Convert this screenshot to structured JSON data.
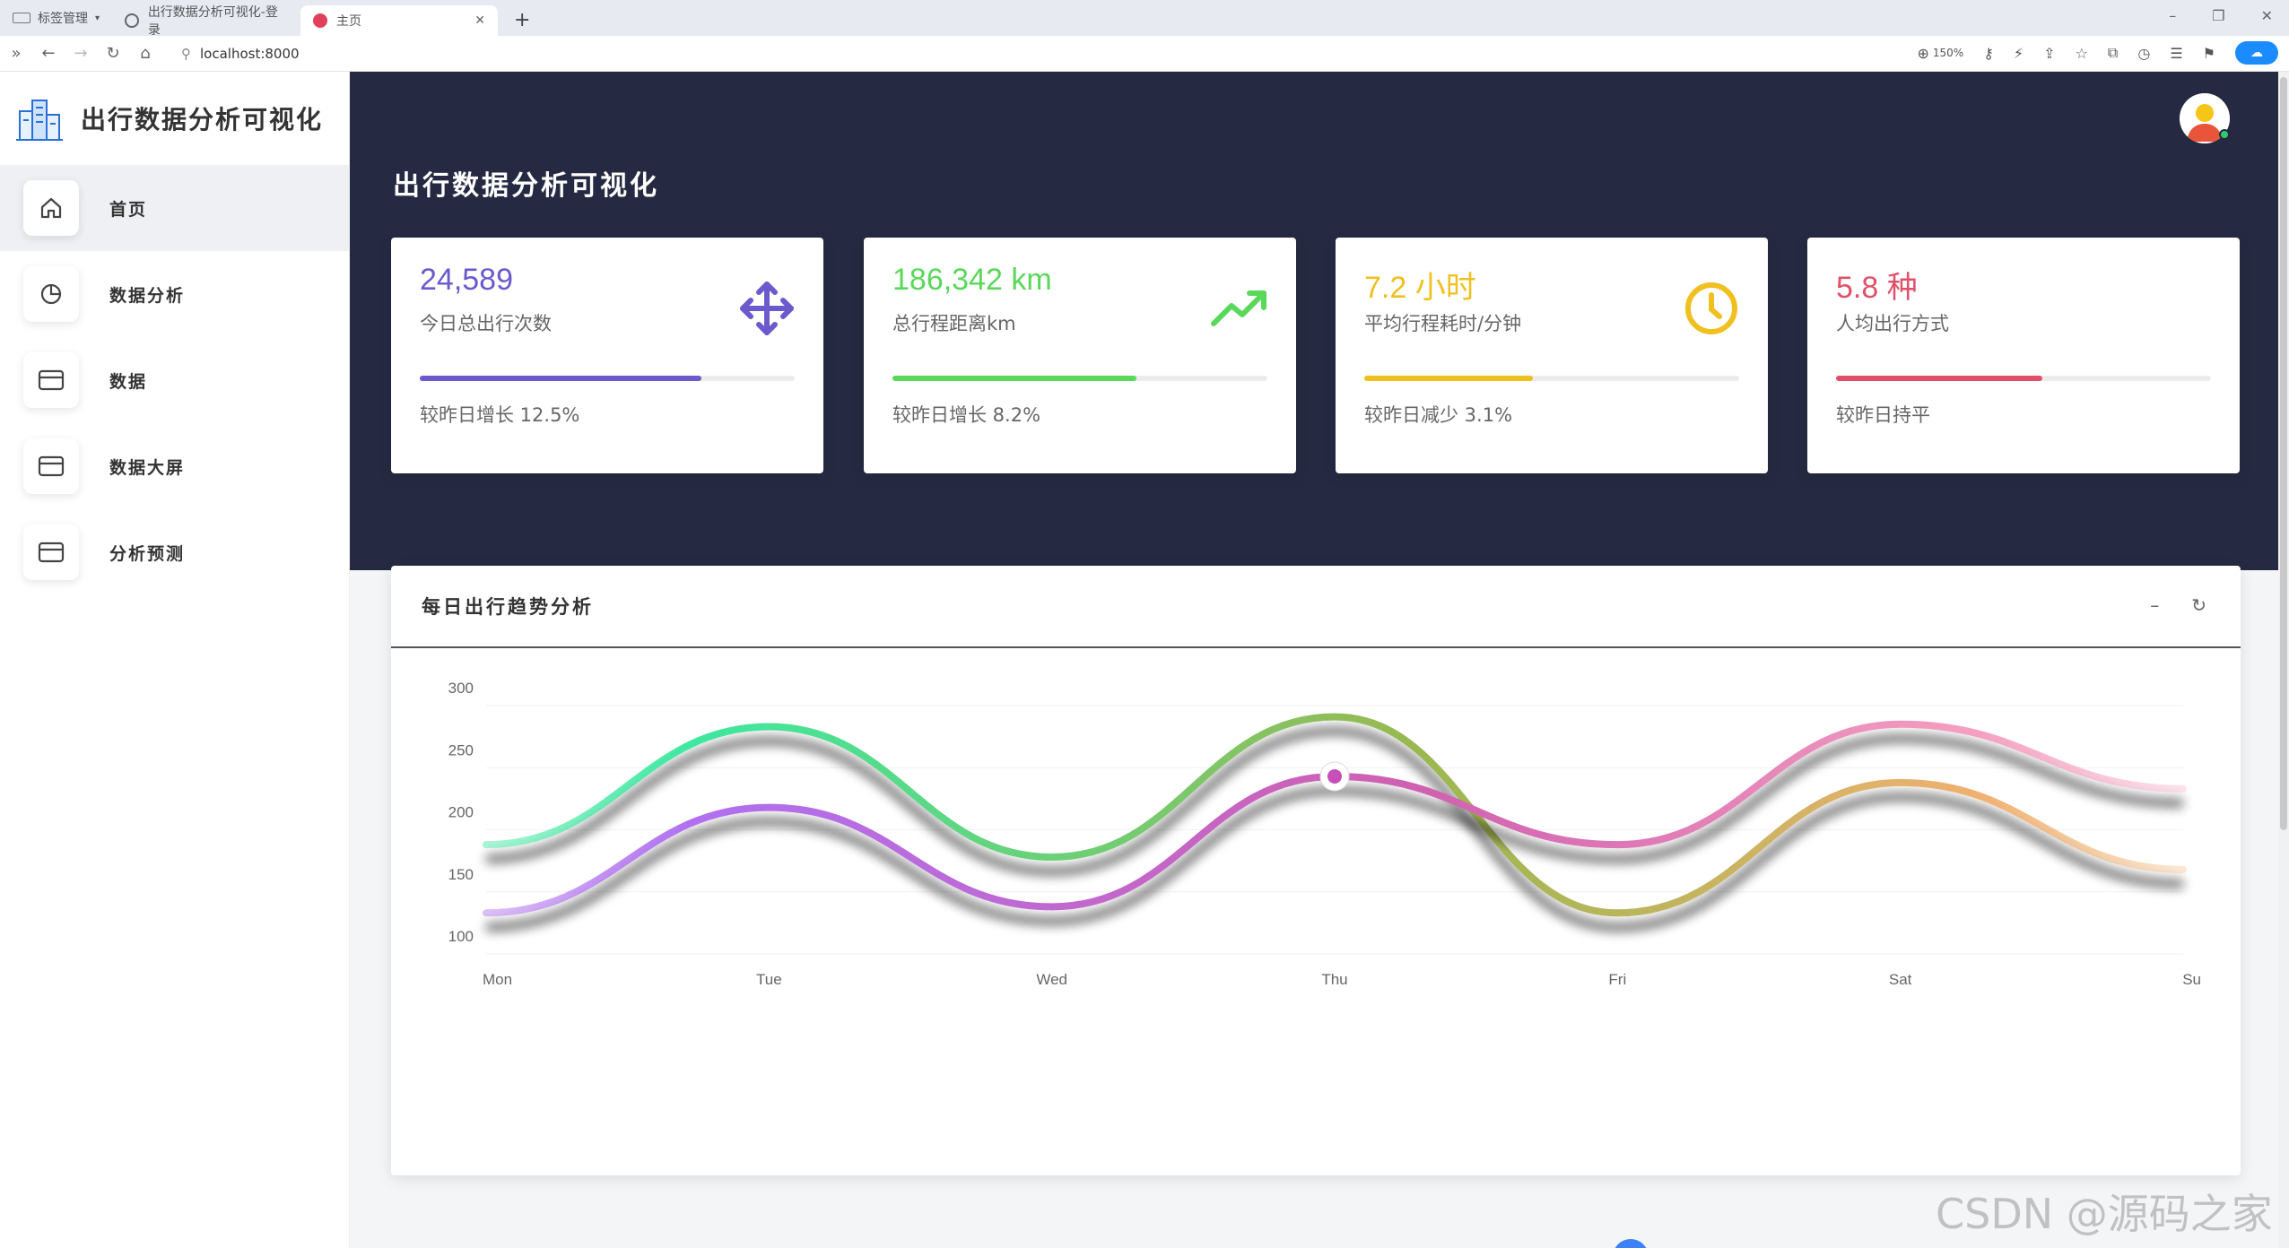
{
  "browser": {
    "tab_group_label": "标签管理",
    "tabs": [
      {
        "title": "出行数据分析可视化-登录"
      },
      {
        "title": "主页"
      }
    ],
    "url": "localhost:8000",
    "zoom": "150%"
  },
  "sidebar": {
    "brand": "出行数据分析可视化",
    "items": [
      {
        "label": "首页",
        "icon": "home-icon"
      },
      {
        "label": "数据分析",
        "icon": "pie-chart-icon"
      },
      {
        "label": "数据",
        "icon": "card-icon"
      },
      {
        "label": "数据大屏",
        "icon": "card-icon"
      },
      {
        "label": "分析预测",
        "icon": "card-icon"
      }
    ]
  },
  "header": {
    "page_title": "出行数据分析可视化"
  },
  "stats": [
    {
      "value": "24,589",
      "label": "今日总出行次数",
      "note": "较昨日增长 12.5%",
      "color": "#6a5acd",
      "progress": 0.75,
      "icon": "move-arrows-icon"
    },
    {
      "value": "186,342 km",
      "label": "总行程距离km",
      "note": "较昨日增长 8.2%",
      "color": "#5ad85a",
      "progress": 0.65,
      "icon": "trending-up-icon"
    },
    {
      "value": "7.2 小时",
      "label": "平均行程耗时/分钟",
      "note": "较昨日减少 3.1%",
      "color": "#f0c020",
      "progress": 0.45,
      "icon": "clock-icon"
    },
    {
      "value": "5.8 种",
      "label": "人均出行方式",
      "note": "较昨日持平",
      "color": "#e0506a",
      "progress": 0.55,
      "icon": "none"
    }
  ],
  "chart_panel": {
    "title": "每日出行趋势分析",
    "tools": [
      "minimize",
      "refresh"
    ]
  },
  "chart_data": {
    "type": "line",
    "smooth": true,
    "categories": [
      "Mon",
      "Tue",
      "Wed",
      "Thu",
      "Fri",
      "Sat",
      "Su"
    ],
    "ylim": [
      100,
      300
    ],
    "yticks": [
      100,
      150,
      200,
      250,
      300
    ],
    "series": [
      {
        "values": [
          175,
          270,
          165,
          278,
          120,
          225,
          155
        ],
        "color_start": "#3de8a0",
        "color_mid": "#9ab850",
        "color_end": "#f0b070"
      },
      {
        "values": [
          120,
          205,
          125,
          230,
          175,
          272,
          220
        ],
        "color_start": "#b070f0",
        "color_mid": "#d060b0",
        "color_end": "#f5a0c0"
      }
    ],
    "highlight_point": {
      "category": "Thu",
      "value": 230
    }
  },
  "watermark": "CSDN @源码之家"
}
